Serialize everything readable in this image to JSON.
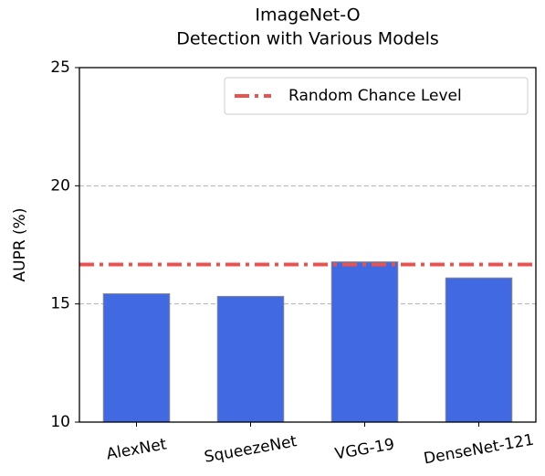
{
  "chart_data": {
    "type": "bar",
    "title": [
      "ImageNet-O",
      "Detection with Various Models"
    ],
    "ylabel": "AUPR (%)",
    "categories": [
      "AlexNet",
      "SqueezeNet",
      "VGG-19",
      "DenseNet-121"
    ],
    "values": [
      15.43,
      15.32,
      16.78,
      16.1
    ],
    "color": "#4169e1",
    "ylim": [
      10,
      25
    ],
    "yticks": [
      10,
      15,
      20,
      25
    ],
    "grid": true,
    "reference_line": {
      "name": "Random Chance Level",
      "value": 16.67,
      "color": "#e8534f"
    },
    "legend": "upper right"
  }
}
